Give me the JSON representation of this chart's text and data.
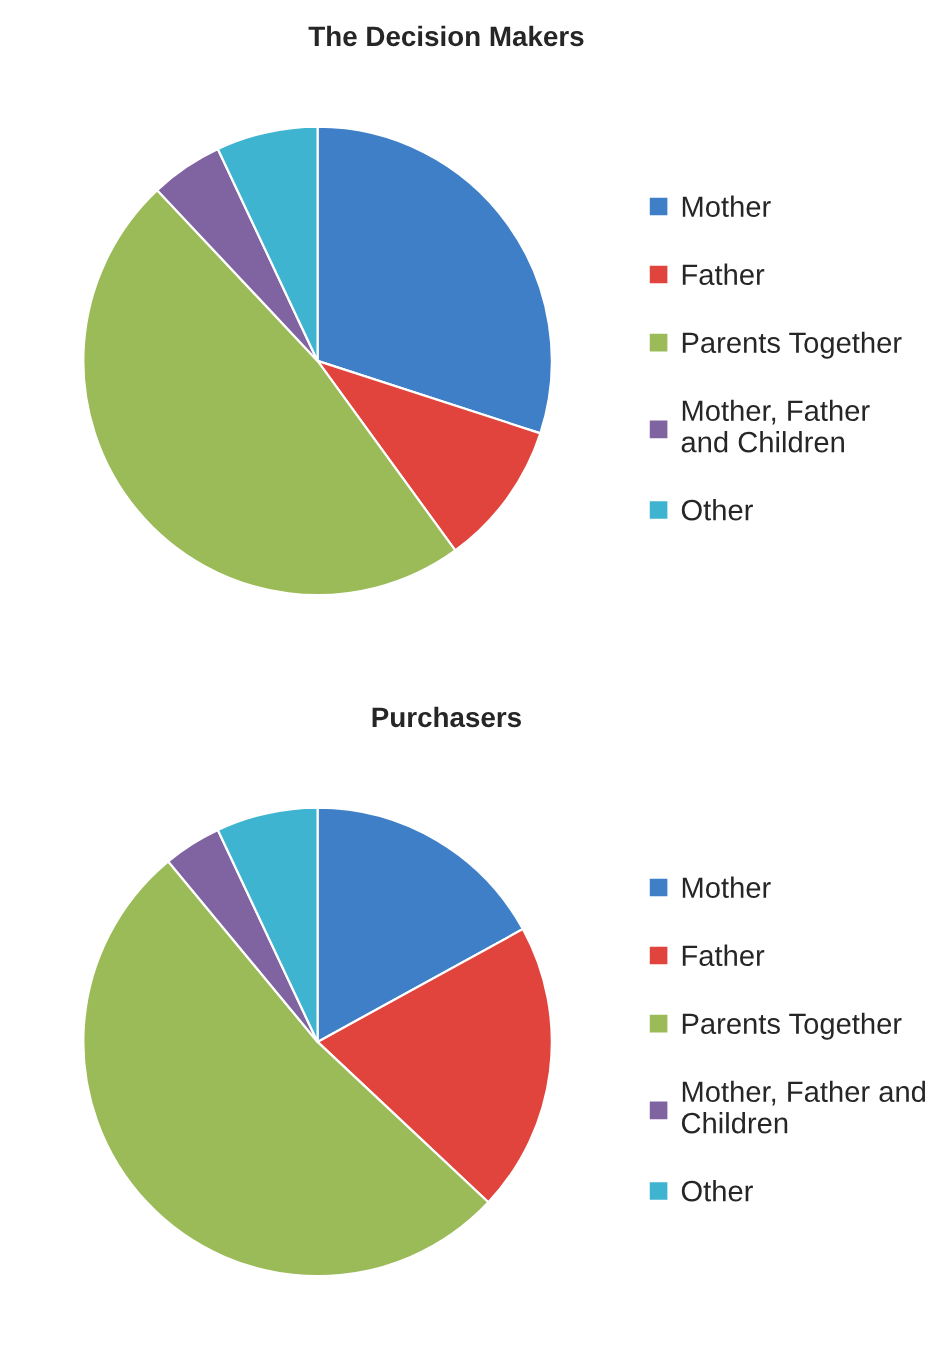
{
  "chart_data": [
    {
      "type": "pie",
      "title": "The Decision Makers",
      "categories": [
        "Mother",
        "Father",
        "Parents Together",
        "Mother, Father\nand Children",
        "Other"
      ],
      "values": [
        30,
        10,
        48,
        5,
        7
      ],
      "colors": [
        "#3f7fc8",
        "#e0443c",
        "#9bbb59",
        "#8064a2",
        "#3fb4d0"
      ],
      "legend": "right"
    },
    {
      "type": "pie",
      "title": "Purchasers",
      "categories": [
        "Mother",
        "Father",
        "Parents Together",
        "Mother, Father and\nChildren",
        "Other"
      ],
      "values": [
        17,
        20,
        52,
        4,
        7
      ],
      "colors": [
        "#3f7fc8",
        "#e0443c",
        "#9bbb59",
        "#8064a2",
        "#3fb4d0"
      ],
      "legend": "right"
    }
  ]
}
